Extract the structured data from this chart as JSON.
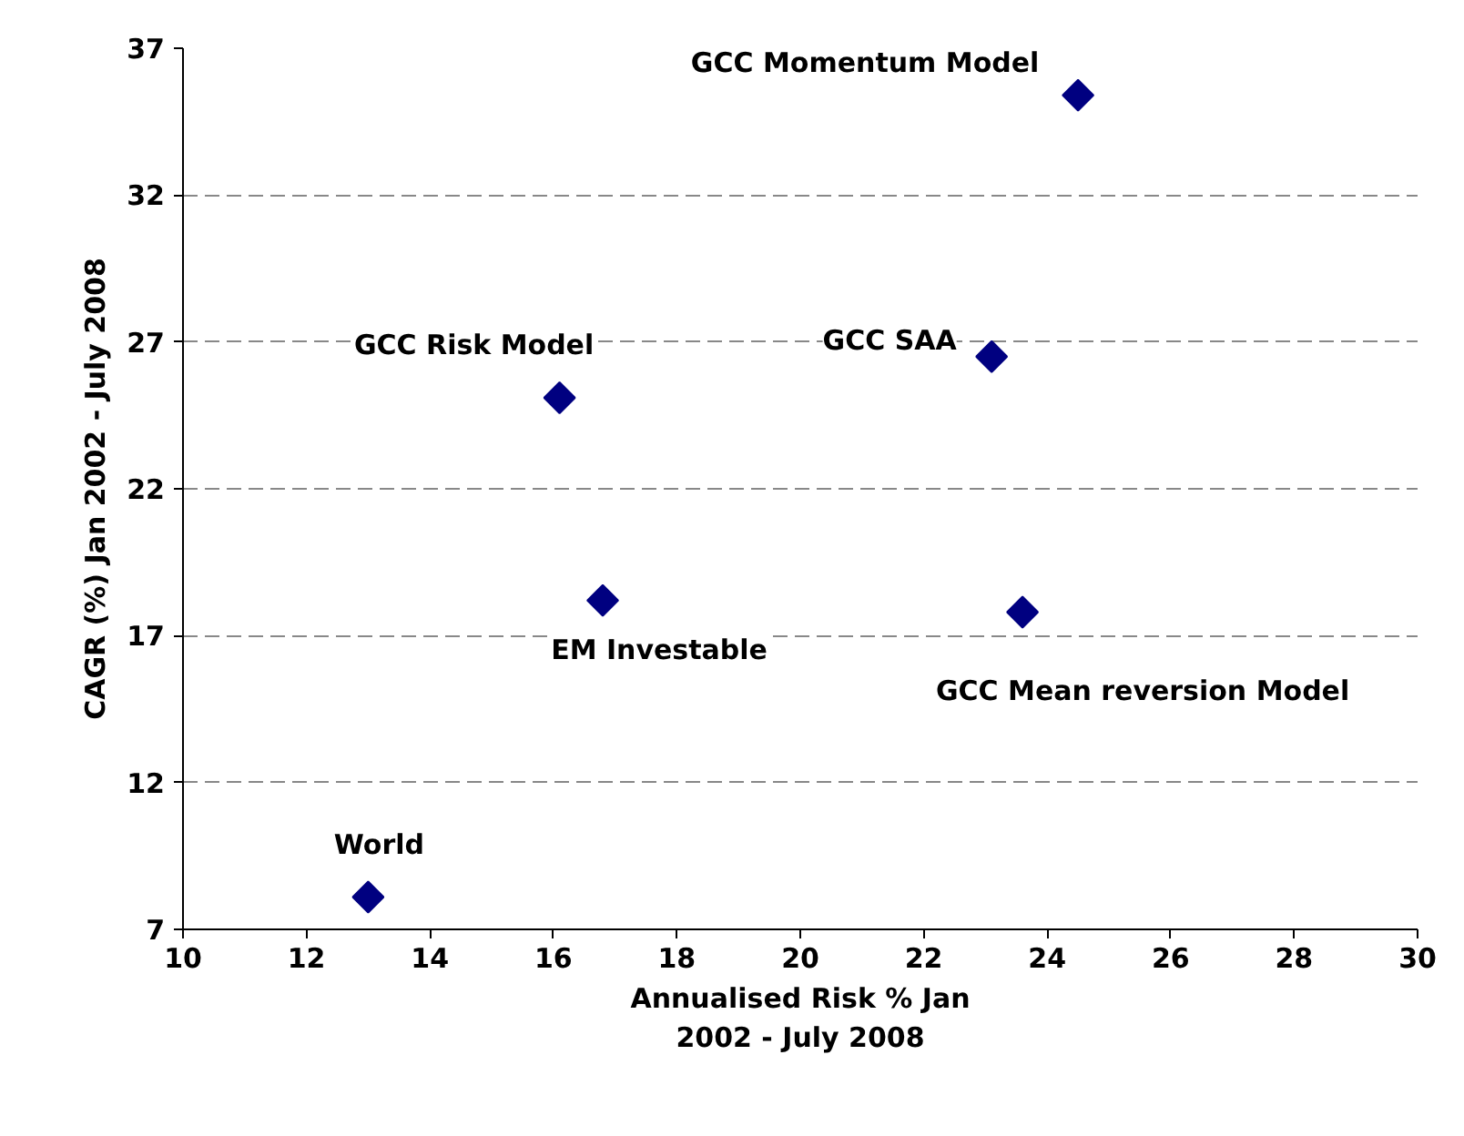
{
  "chart_data": {
    "type": "scatter",
    "xlabel": "Annualised Risk % Jan\n2002 - July 2008",
    "ylabel": "CAGR (%) Jan 2002 - July 2008",
    "x": [
      24.5,
      23.1,
      16.1,
      16.8,
      23.6,
      13.0
    ],
    "series": [
      {
        "color": "#000080",
        "values": [
          35.4,
          26.5,
          25.1,
          18.2,
          17.8,
          8.1
        ]
      }
    ],
    "marker": "diamond",
    "grid": "y",
    "xlim": [
      10,
      30
    ],
    "xticks": [
      10,
      12,
      14,
      16,
      18,
      20,
      22,
      24,
      26,
      28,
      30
    ],
    "ylim": [
      7,
      37
    ],
    "yticks": [
      7,
      12,
      17,
      22,
      27,
      32,
      37
    ],
    "annotations": [
      {
        "text": "GCC Momentum Model",
        "x": 24.5,
        "y": 35.4
      },
      {
        "text": "GCC SAA",
        "x": 23.1,
        "y": 26.5
      },
      {
        "text": "GCC Risk Model",
        "x": 16.1,
        "y": 25.1
      },
      {
        "text": "EM Investable",
        "x": 16.8,
        "y": 18.2
      },
      {
        "text": "GCC Mean reversion Model",
        "x": 23.6,
        "y": 17.8
      },
      {
        "text": "World",
        "x": 13.0,
        "y": 8.1
      }
    ]
  }
}
